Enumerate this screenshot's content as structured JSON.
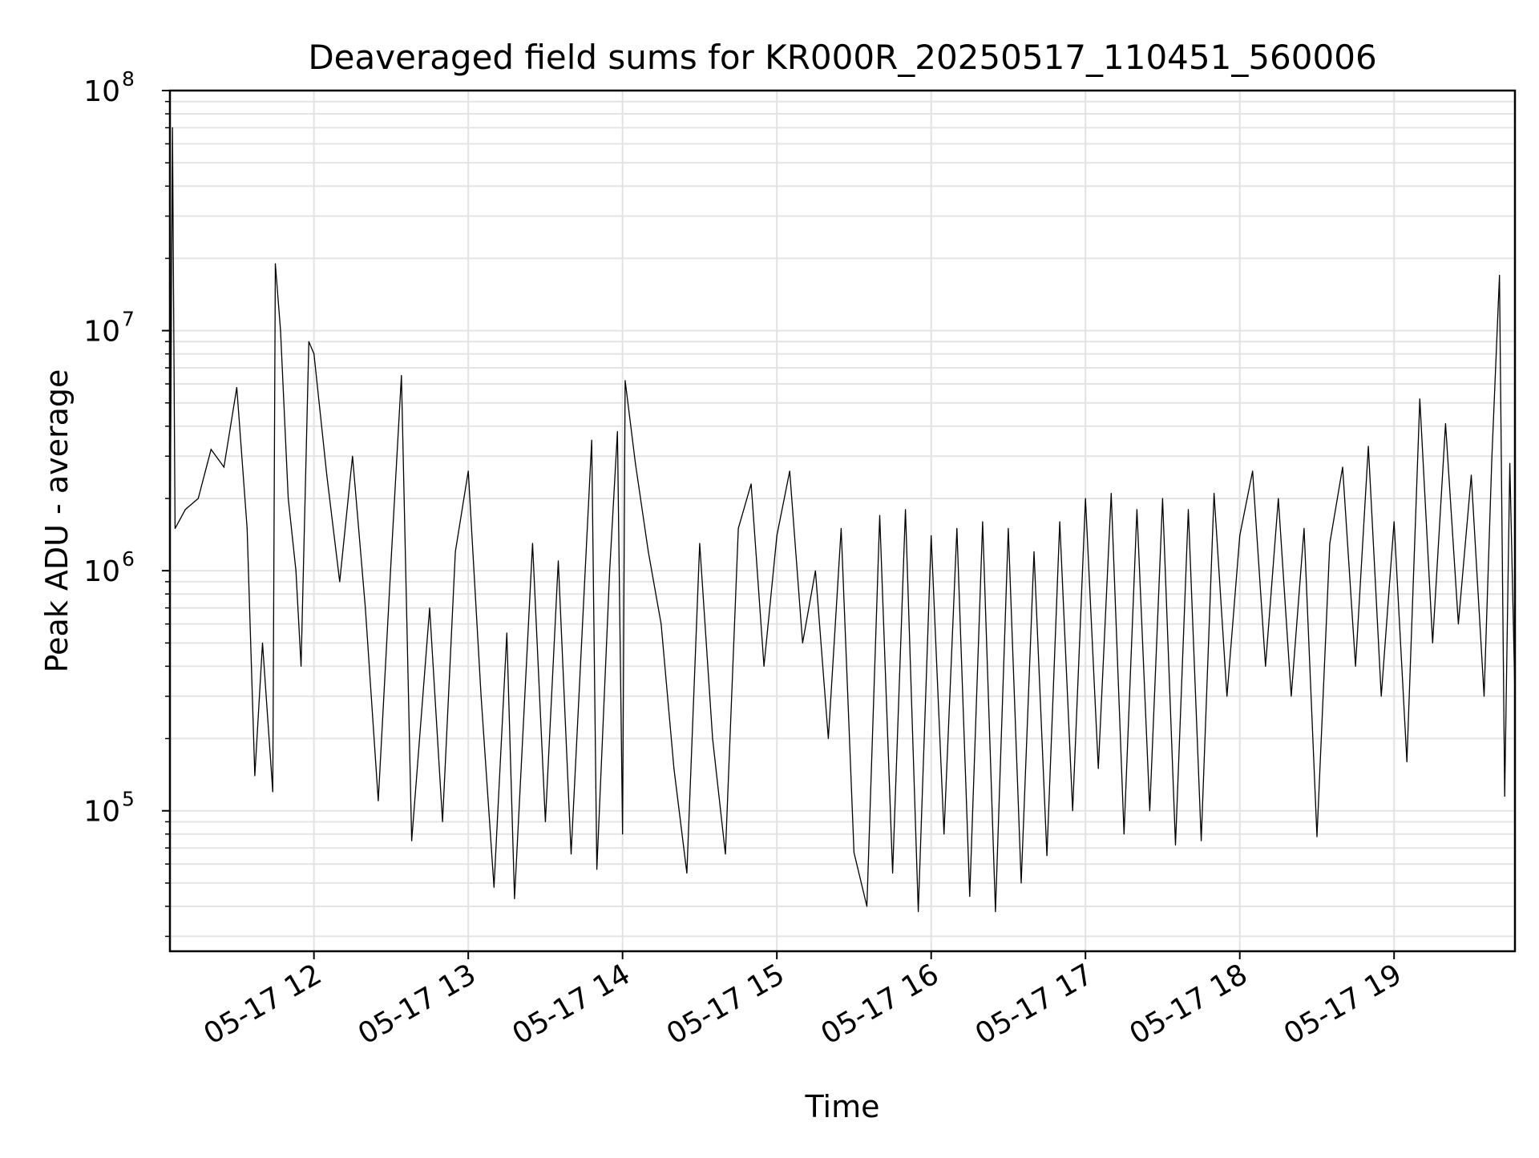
{
  "chart_data": {
    "type": "line",
    "title": "Deaveraged field sums for KR000R_20250517_110451_560006",
    "xlabel": "Time",
    "ylabel": "Peak ADU - average",
    "yscale": "log",
    "ylim": [
      26000,
      100000000
    ],
    "xlim": [
      "2025-05-17 11:04",
      "2025-05-17 19:47"
    ],
    "x_tick_labels": [
      "05-17 12",
      "05-17 13",
      "05-17 14",
      "05-17 15",
      "05-17 16",
      "05-17 17",
      "05-17 18",
      "05-17 19"
    ],
    "y_tick_labels": [
      {
        "base": "10",
        "exp": "5"
      },
      {
        "base": "10",
        "exp": "6"
      },
      {
        "base": "10",
        "exp": "7"
      },
      {
        "base": "10",
        "exp": "8"
      }
    ],
    "grid": true,
    "line_color": "#000000",
    "series": [
      {
        "points": [
          [
            "2025-05-17 11:04",
            1000000
          ],
          [
            "2025-05-17 11:05",
            70000000
          ],
          [
            "2025-05-17 11:06",
            1500000
          ],
          [
            "2025-05-17 11:10",
            1800000
          ],
          [
            "2025-05-17 11:15",
            2000000
          ],
          [
            "2025-05-17 11:20",
            3200000
          ],
          [
            "2025-05-17 11:25",
            2700000
          ],
          [
            "2025-05-17 11:30",
            5800000
          ],
          [
            "2025-05-17 11:34",
            1500000
          ],
          [
            "2025-05-17 11:37",
            140000
          ],
          [
            "2025-05-17 11:40",
            500000
          ],
          [
            "2025-05-17 11:44",
            120000
          ],
          [
            "2025-05-17 11:45",
            19000000
          ],
          [
            "2025-05-17 11:47",
            10000000
          ],
          [
            "2025-05-17 11:50",
            2000000
          ],
          [
            "2025-05-17 11:53",
            1000000
          ],
          [
            "2025-05-17 11:55",
            400000
          ],
          [
            "2025-05-17 11:58",
            9000000
          ],
          [
            "2025-05-17 12:00",
            8000000
          ],
          [
            "2025-05-17 12:05",
            2500000
          ],
          [
            "2025-05-17 12:10",
            900000
          ],
          [
            "2025-05-17 12:15",
            3000000
          ],
          [
            "2025-05-17 12:20",
            700000
          ],
          [
            "2025-05-17 12:25",
            110000
          ],
          [
            "2025-05-17 12:30",
            1100000
          ],
          [
            "2025-05-17 12:34",
            6500000
          ],
          [
            "2025-05-17 12:38",
            75000
          ],
          [
            "2025-05-17 12:45",
            700000
          ],
          [
            "2025-05-17 12:50",
            90000
          ],
          [
            "2025-05-17 12:55",
            1200000
          ],
          [
            "2025-05-17 13:00",
            2600000
          ],
          [
            "2025-05-17 13:05",
            300000
          ],
          [
            "2025-05-17 13:10",
            48000
          ],
          [
            "2025-05-17 13:15",
            550000
          ],
          [
            "2025-05-17 13:18",
            43000
          ],
          [
            "2025-05-17 13:25",
            1300000
          ],
          [
            "2025-05-17 13:30",
            90000
          ],
          [
            "2025-05-17 13:35",
            1100000
          ],
          [
            "2025-05-17 13:40",
            66000
          ],
          [
            "2025-05-17 13:45",
            800000
          ],
          [
            "2025-05-17 13:48",
            3500000
          ],
          [
            "2025-05-17 13:50",
            57000
          ],
          [
            "2025-05-17 13:55",
            1000000
          ],
          [
            "2025-05-17 13:58",
            3800000
          ],
          [
            "2025-05-17 14:00",
            80000
          ],
          [
            "2025-05-17 14:01",
            6200000
          ],
          [
            "2025-05-17 14:05",
            2800000
          ],
          [
            "2025-05-17 14:10",
            1200000
          ],
          [
            "2025-05-17 14:15",
            600000
          ],
          [
            "2025-05-17 14:20",
            150000
          ],
          [
            "2025-05-17 14:25",
            55000
          ],
          [
            "2025-05-17 14:30",
            1300000
          ],
          [
            "2025-05-17 14:35",
            200000
          ],
          [
            "2025-05-17 14:40",
            66000
          ],
          [
            "2025-05-17 14:45",
            1500000
          ],
          [
            "2025-05-17 14:50",
            2300000
          ],
          [
            "2025-05-17 14:55",
            400000
          ],
          [
            "2025-05-17 15:00",
            1400000
          ],
          [
            "2025-05-17 15:05",
            2600000
          ],
          [
            "2025-05-17 15:10",
            500000
          ],
          [
            "2025-05-17 15:15",
            1000000
          ],
          [
            "2025-05-17 15:20",
            200000
          ],
          [
            "2025-05-17 15:25",
            1500000
          ],
          [
            "2025-05-17 15:30",
            67000
          ],
          [
            "2025-05-17 15:35",
            40000
          ],
          [
            "2025-05-17 15:40",
            1700000
          ],
          [
            "2025-05-17 15:45",
            55000
          ],
          [
            "2025-05-17 15:50",
            1800000
          ],
          [
            "2025-05-17 15:55",
            38000
          ],
          [
            "2025-05-17 16:00",
            1400000
          ],
          [
            "2025-05-17 16:05",
            80000
          ],
          [
            "2025-05-17 16:10",
            1500000
          ],
          [
            "2025-05-17 16:15",
            44000
          ],
          [
            "2025-05-17 16:20",
            1600000
          ],
          [
            "2025-05-17 16:25",
            38000
          ],
          [
            "2025-05-17 16:30",
            1500000
          ],
          [
            "2025-05-17 16:35",
            50000
          ],
          [
            "2025-05-17 16:40",
            1200000
          ],
          [
            "2025-05-17 16:45",
            65000
          ],
          [
            "2025-05-17 16:50",
            1600000
          ],
          [
            "2025-05-17 16:55",
            100000
          ],
          [
            "2025-05-17 17:00",
            2000000
          ],
          [
            "2025-05-17 17:05",
            150000
          ],
          [
            "2025-05-17 17:10",
            2100000
          ],
          [
            "2025-05-17 17:15",
            80000
          ],
          [
            "2025-05-17 17:20",
            1800000
          ],
          [
            "2025-05-17 17:25",
            100000
          ],
          [
            "2025-05-17 17:30",
            2000000
          ],
          [
            "2025-05-17 17:35",
            72000
          ],
          [
            "2025-05-17 17:40",
            1800000
          ],
          [
            "2025-05-17 17:45",
            75000
          ],
          [
            "2025-05-17 17:50",
            2100000
          ],
          [
            "2025-05-17 17:55",
            300000
          ],
          [
            "2025-05-17 18:00",
            1400000
          ],
          [
            "2025-05-17 18:05",
            2600000
          ],
          [
            "2025-05-17 18:10",
            400000
          ],
          [
            "2025-05-17 18:15",
            2000000
          ],
          [
            "2025-05-17 18:20",
            300000
          ],
          [
            "2025-05-17 18:25",
            1500000
          ],
          [
            "2025-05-17 18:30",
            78000
          ],
          [
            "2025-05-17 18:35",
            1300000
          ],
          [
            "2025-05-17 18:40",
            2700000
          ],
          [
            "2025-05-17 18:45",
            400000
          ],
          [
            "2025-05-17 18:50",
            3300000
          ],
          [
            "2025-05-17 18:55",
            300000
          ],
          [
            "2025-05-17 19:00",
            1600000
          ],
          [
            "2025-05-17 19:05",
            160000
          ],
          [
            "2025-05-17 19:10",
            5200000
          ],
          [
            "2025-05-17 19:15",
            500000
          ],
          [
            "2025-05-17 19:20",
            4100000
          ],
          [
            "2025-05-17 19:25",
            600000
          ],
          [
            "2025-05-17 19:30",
            2500000
          ],
          [
            "2025-05-17 19:35",
            300000
          ],
          [
            "2025-05-17 19:38",
            2900000
          ],
          [
            "2025-05-17 19:41",
            17000000
          ],
          [
            "2025-05-17 19:43",
            115000
          ],
          [
            "2025-05-17 19:45",
            2800000
          ],
          [
            "2025-05-17 19:47",
            300000
          ]
        ]
      }
    ]
  }
}
